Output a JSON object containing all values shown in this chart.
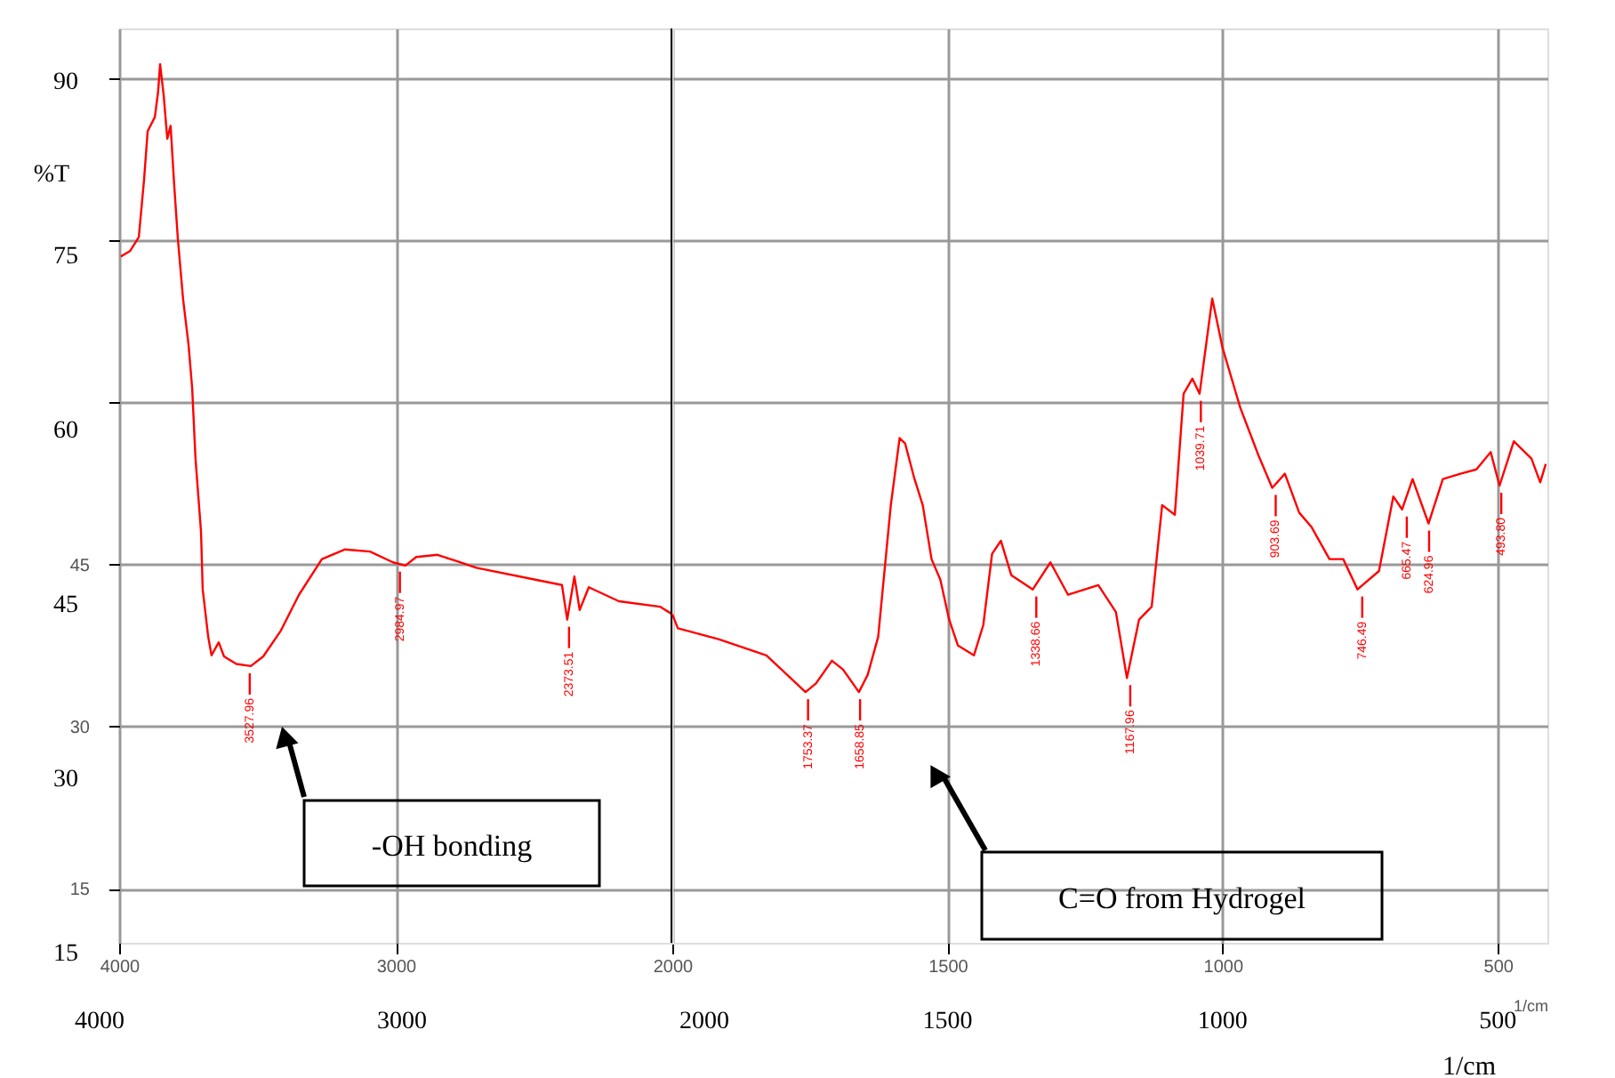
{
  "chart_data": [
    {
      "type": "line",
      "y2label": "%T",
      "x": [
        3994,
        3961,
        3929,
        3910,
        3897,
        3871,
        3859,
        3852,
        3839,
        3826,
        3814,
        3801,
        3788,
        3769,
        3749,
        3736,
        3724,
        3704,
        3698,
        3678,
        3666,
        3640,
        3621,
        3576,
        3524,
        3479,
        3415,
        3350,
        3267,
        3183,
        3093,
        3010,
        2965,
        2926,
        2849,
        2708,
        2495,
        2399,
        2380,
        2354,
        2335,
        2302,
        2193,
        2045,
        2000
      ],
      "series": [
        {
          "color": "#ff0000",
          "values": [
            73.5,
            74.0,
            75.3,
            80.6,
            85.1,
            86.4,
            88.8,
            91.3,
            88.4,
            84.4,
            85.6,
            80.1,
            75.2,
            69.6,
            65.3,
            61.3,
            54.8,
            48.0,
            42.7,
            38.3,
            36.6,
            37.8,
            36.5,
            35.8,
            35.6,
            36.5,
            38.9,
            42.2,
            45.5,
            46.4,
            46.2,
            45.2,
            44.9,
            45.7,
            45.9,
            44.7,
            43.6,
            43.1,
            39.9,
            43.9,
            40.8,
            42.9,
            41.6,
            41.1,
            40.4
          ]
        }
      ],
      "xlim": [
        4000,
        2000
      ],
      "xticks": [
        4000,
        3000,
        2000
      ],
      "ylim": [
        10,
        94.6
      ],
      "yticks": [
        15,
        30,
        45,
        {
          "value": 60,
          "label": null
        },
        {
          "value": 75,
          "label": null
        },
        {
          "value": 90,
          "label": null
        }
      ],
      "x2lim": [
        4000,
        2000
      ],
      "x2ticks": [
        4000,
        3000,
        2000
      ],
      "y2lim": [
        15,
        90
      ],
      "y2ticks": [
        15,
        30,
        45,
        60,
        75,
        90
      ],
      "ref_lines": [
        {
          "axis": "x",
          "value": 2000,
          "color": "#000000"
        }
      ],
      "grid": true,
      "line_style": "solid",
      "marker": "none",
      "annotations": [
        {
          "text": "3527.96",
          "x": 3527.96,
          "y": 35.6
        },
        {
          "text": "2984.97",
          "x": 2984.97,
          "y": 45.0
        },
        {
          "text": "2373.51",
          "x": 2373.51,
          "y": 39.9
        },
        "-OH bonding"
      ]
    },
    {
      "type": "line",
      "xlabel": "1/cm",
      "x2label": "1/cm",
      "x": [
        2000,
        1990,
        1916,
        1829,
        1758,
        1739,
        1710,
        1690,
        1661,
        1645,
        1626,
        1603,
        1587,
        1577,
        1561,
        1545,
        1529,
        1513,
        1497,
        1481,
        1452,
        1435,
        1419,
        1403,
        1384,
        1345,
        1313,
        1281,
        1226,
        1194,
        1174,
        1152,
        1129,
        1110,
        1087,
        1071,
        1055,
        1042,
        1019,
        1000,
        968,
        935,
        910,
        887,
        861,
        839,
        806,
        781,
        755,
        716,
        690,
        674,
        655,
        626,
        600,
        568,
        539,
        513,
        497,
        471,
        439,
        423,
        413
      ],
      "series": [
        {
          "color": "#ff0000",
          "values": [
            40.4,
            39.1,
            38.1,
            36.6,
            33.2,
            34.0,
            36.1,
            35.3,
            33.2,
            34.8,
            38.3,
            50.5,
            56.7,
            56.2,
            53.1,
            50.5,
            45.5,
            43.6,
            39.9,
            37.5,
            36.6,
            39.4,
            46.0,
            47.2,
            44.0,
            42.7,
            45.2,
            42.2,
            43.1,
            40.6,
            34.5,
            39.9,
            41.1,
            50.5,
            49.6,
            60.8,
            62.2,
            60.8,
            69.6,
            65.0,
            59.5,
            55.1,
            52.1,
            53.4,
            49.8,
            48.5,
            45.5,
            45.5,
            42.7,
            44.4,
            51.3,
            50.1,
            52.9,
            48.8,
            52.9,
            53.4,
            53.8,
            55.4,
            52.3,
            56.4,
            54.8,
            52.6,
            54.3
          ]
        }
      ],
      "xlim": [
        2000,
        410
      ],
      "xticks": [
        1500,
        1000,
        500
      ],
      "ylim": [
        10,
        94.6
      ],
      "yticks": [
        15,
        30,
        45,
        60,
        75,
        90
      ],
      "x2lim": [
        2000,
        410
      ],
      "x2ticks": [
        1500,
        1000,
        500
      ],
      "grid": true,
      "line_style": "solid",
      "marker": "none",
      "tick_labels": "x",
      "annotations": [
        {
          "text": "1753.37",
          "x": 1753.37,
          "y": 33.2
        },
        {
          "text": "1658.85",
          "x": 1658.85,
          "y": 33.2
        },
        {
          "text": "1338.66",
          "x": 1338.66,
          "y": 42.7
        },
        {
          "text": "1167.96",
          "x": 1167.96,
          "y": 34.5
        },
        {
          "text": "1039.71",
          "x": 1039.71,
          "y": 60.8
        },
        {
          "text": "903.69",
          "x": 903.69,
          "y": 52.1
        },
        {
          "text": "746.49",
          "x": 746.49,
          "y": 42.7
        },
        {
          "text": "665.47",
          "x": 665.47,
          "y": 50.1
        },
        {
          "text": "624.96",
          "x": 624.96,
          "y": 48.8
        },
        {
          "text": "493.80",
          "x": 493.8,
          "y": 52.3
        },
        "C=O from Hydrogel"
      ]
    }
  ]
}
